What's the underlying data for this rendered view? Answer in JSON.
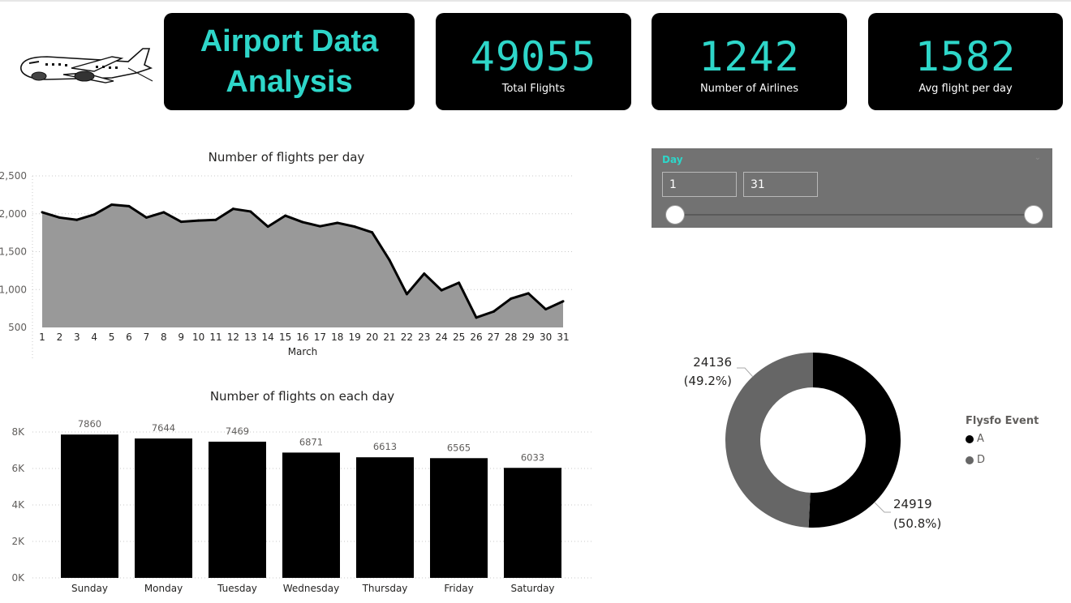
{
  "header": {
    "title": "Airport Data Analysis",
    "plane_icon": "airplane-icon",
    "kpis": [
      {
        "value": "49055",
        "label": "Total Flights"
      },
      {
        "value": "1242",
        "label": "Number of Airlines"
      },
      {
        "value": "1582",
        "label": "Avg flight per day"
      }
    ]
  },
  "slicer": {
    "title": "Day",
    "from": "1",
    "to": "31",
    "chevron_icon": "chevron-down-icon"
  },
  "colors": {
    "accent": "#2ed6c9",
    "card_bg": "#000000",
    "area_fill": "#999999",
    "series_a": "#000000",
    "series_d": "#666666",
    "slicer_bg": "#727272"
  },
  "chart_data": [
    {
      "type": "area",
      "title": "Number of flights per day",
      "xlabel": "March",
      "ylabel": "",
      "x": [
        1,
        2,
        3,
        4,
        5,
        6,
        7,
        8,
        9,
        10,
        11,
        12,
        13,
        14,
        15,
        16,
        17,
        18,
        19,
        20,
        21,
        22,
        23,
        24,
        25,
        26,
        27,
        28,
        29,
        30,
        31
      ],
      "values": [
        2020,
        1950,
        1920,
        1990,
        2120,
        2100,
        1950,
        2020,
        1895,
        1910,
        1920,
        2065,
        2030,
        1830,
        1975,
        1890,
        1835,
        1880,
        1830,
        1755,
        1390,
        940,
        1210,
        990,
        1090,
        630,
        710,
        880,
        950,
        740,
        845
      ],
      "ylim": [
        500,
        2500
      ],
      "yticks": [
        "500",
        "1,000",
        "1,500",
        "2,000",
        "2,500"
      ],
      "grid": true
    },
    {
      "type": "bar",
      "title": "Number of flights on each day",
      "categories": [
        "Sunday",
        "Monday",
        "Tuesday",
        "Wednesday",
        "Thursday",
        "Friday",
        "Saturday"
      ],
      "values": [
        7860,
        7644,
        7469,
        6871,
        6613,
        6565,
        6033
      ],
      "ylim": [
        0,
        8000
      ],
      "yticks": [
        "0K",
        "2K",
        "4K",
        "6K",
        "8K"
      ],
      "grid": true
    },
    {
      "type": "pie",
      "title": "",
      "legend_title": "Flysfo Event",
      "legend_position": "right",
      "slices": [
        {
          "name": "A",
          "value": 24919,
          "label": "24919",
          "pct": "(50.8%)"
        },
        {
          "name": "D",
          "value": 24136,
          "label": "24136",
          "pct": "(49.2%)"
        }
      ]
    }
  ]
}
